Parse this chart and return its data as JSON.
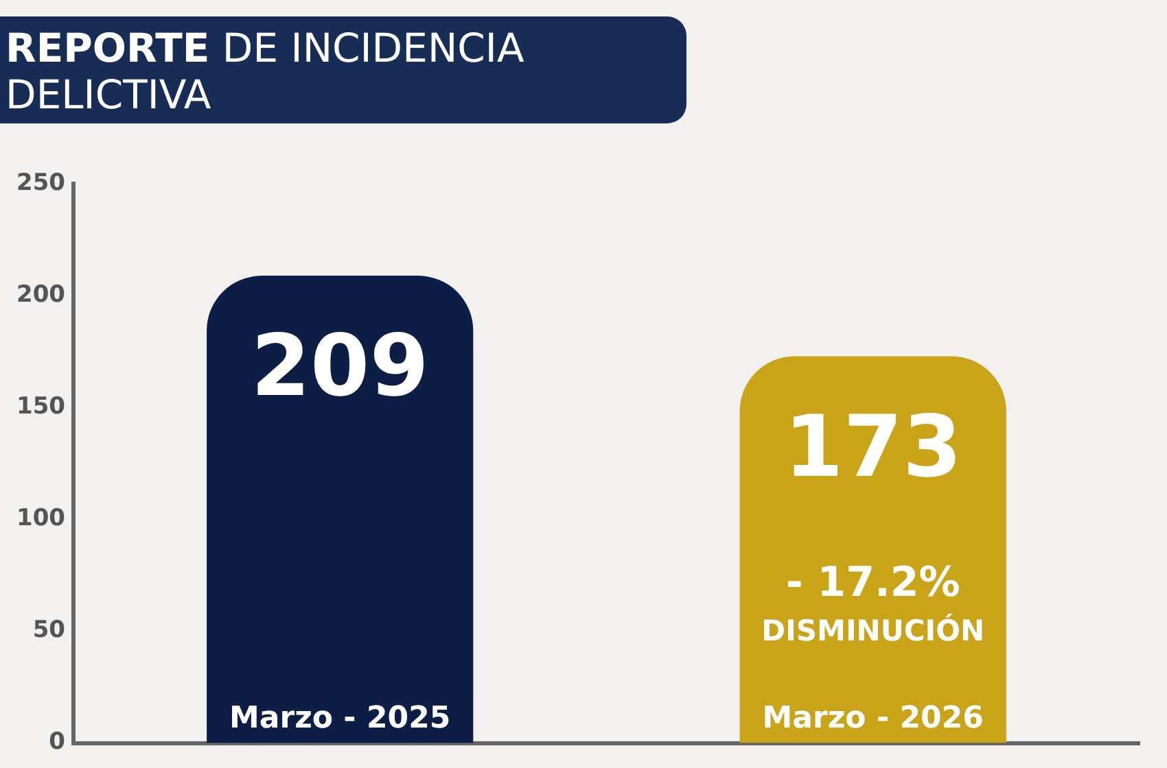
{
  "chart_data": {
    "type": "bar",
    "title": "REPORTE DE INCIDENCIA DELICTIVA",
    "categories": [
      "Marzo - 2025",
      "Marzo - 2026"
    ],
    "values": [
      209,
      173
    ],
    "colors": [
      "#0c1e45",
      "#c9a418"
    ],
    "ylim": [
      0,
      250
    ],
    "yticks": [
      0,
      50,
      100,
      150,
      200,
      250
    ],
    "grid": false,
    "legend": false,
    "data_labels": true,
    "annotations": [
      "- 17.2%",
      "DISMINUCIÓN"
    ]
  }
}
